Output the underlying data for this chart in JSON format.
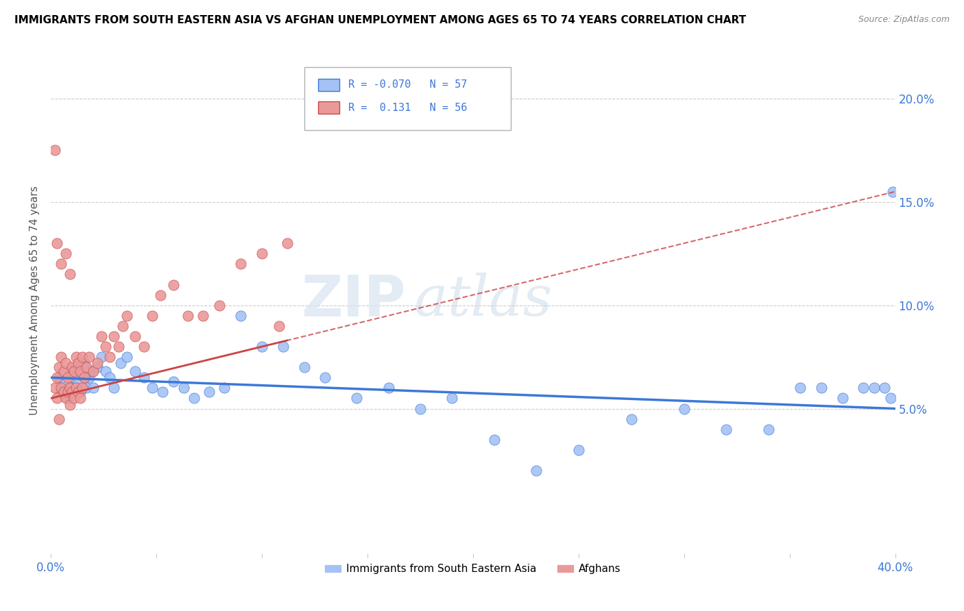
{
  "title": "IMMIGRANTS FROM SOUTH EASTERN ASIA VS AFGHAN UNEMPLOYMENT AMONG AGES 65 TO 74 YEARS CORRELATION CHART",
  "source": "Source: ZipAtlas.com",
  "ylabel": "Unemployment Among Ages 65 to 74 years",
  "x_min": 0.0,
  "x_max": 0.4,
  "y_min": -0.02,
  "y_max": 0.225,
  "y_ticks": [
    0.05,
    0.1,
    0.15,
    0.2
  ],
  "y_tick_labels": [
    "5.0%",
    "10.0%",
    "15.0%",
    "20.0%"
  ],
  "x_ticks": [
    0.0,
    0.05,
    0.1,
    0.15,
    0.2,
    0.25,
    0.3,
    0.35,
    0.4
  ],
  "x_tick_labels": [
    "0.0%",
    "",
    "",
    "",
    "",
    "",
    "",
    "",
    "40.0%"
  ],
  "legend_R1": "-0.070",
  "legend_N1": "57",
  "legend_R2": "0.131",
  "legend_N2": "56",
  "color_blue": "#a4c2f4",
  "color_pink": "#ea9999",
  "color_blue_line": "#3c78d8",
  "color_pink_line": "#cc4444",
  "watermark_zip": "ZIP",
  "watermark_atlas": "atlas",
  "blue_x": [
    0.004,
    0.005,
    0.006,
    0.007,
    0.008,
    0.009,
    0.01,
    0.011,
    0.012,
    0.013,
    0.014,
    0.015,
    0.016,
    0.017,
    0.018,
    0.019,
    0.02,
    0.022,
    0.024,
    0.026,
    0.028,
    0.03,
    0.033,
    0.036,
    0.04,
    0.044,
    0.048,
    0.053,
    0.058,
    0.063,
    0.068,
    0.075,
    0.082,
    0.09,
    0.1,
    0.11,
    0.12,
    0.13,
    0.145,
    0.16,
    0.175,
    0.19,
    0.21,
    0.23,
    0.25,
    0.275,
    0.3,
    0.32,
    0.34,
    0.355,
    0.365,
    0.375,
    0.385,
    0.39,
    0.395,
    0.398,
    0.399
  ],
  "blue_y": [
    0.065,
    0.058,
    0.06,
    0.063,
    0.055,
    0.068,
    0.06,
    0.065,
    0.07,
    0.062,
    0.058,
    0.066,
    0.072,
    0.06,
    0.065,
    0.068,
    0.06,
    0.07,
    0.075,
    0.068,
    0.065,
    0.06,
    0.072,
    0.075,
    0.068,
    0.065,
    0.06,
    0.058,
    0.063,
    0.06,
    0.055,
    0.058,
    0.06,
    0.095,
    0.08,
    0.08,
    0.07,
    0.065,
    0.055,
    0.06,
    0.05,
    0.055,
    0.035,
    0.02,
    0.03,
    0.045,
    0.05,
    0.04,
    0.04,
    0.06,
    0.06,
    0.055,
    0.06,
    0.06,
    0.06,
    0.055,
    0.155
  ],
  "pink_x": [
    0.002,
    0.003,
    0.003,
    0.004,
    0.004,
    0.005,
    0.005,
    0.006,
    0.006,
    0.007,
    0.007,
    0.008,
    0.008,
    0.009,
    0.009,
    0.01,
    0.01,
    0.011,
    0.011,
    0.012,
    0.012,
    0.013,
    0.013,
    0.014,
    0.014,
    0.015,
    0.015,
    0.016,
    0.017,
    0.018,
    0.02,
    0.022,
    0.024,
    0.026,
    0.028,
    0.03,
    0.032,
    0.034,
    0.036,
    0.04,
    0.044,
    0.048,
    0.052,
    0.058,
    0.065,
    0.072,
    0.08,
    0.09,
    0.1,
    0.108,
    0.112,
    0.002,
    0.003,
    0.005,
    0.007,
    0.009
  ],
  "pink_y": [
    0.06,
    0.065,
    0.055,
    0.07,
    0.045,
    0.06,
    0.075,
    0.058,
    0.068,
    0.055,
    0.072,
    0.058,
    0.065,
    0.06,
    0.052,
    0.058,
    0.07,
    0.055,
    0.068,
    0.06,
    0.075,
    0.058,
    0.072,
    0.055,
    0.068,
    0.06,
    0.075,
    0.065,
    0.07,
    0.075,
    0.068,
    0.072,
    0.085,
    0.08,
    0.075,
    0.085,
    0.08,
    0.09,
    0.095,
    0.085,
    0.08,
    0.095,
    0.105,
    0.11,
    0.095,
    0.095,
    0.1,
    0.12,
    0.125,
    0.09,
    0.13,
    0.175,
    0.13,
    0.12,
    0.125,
    0.115
  ]
}
